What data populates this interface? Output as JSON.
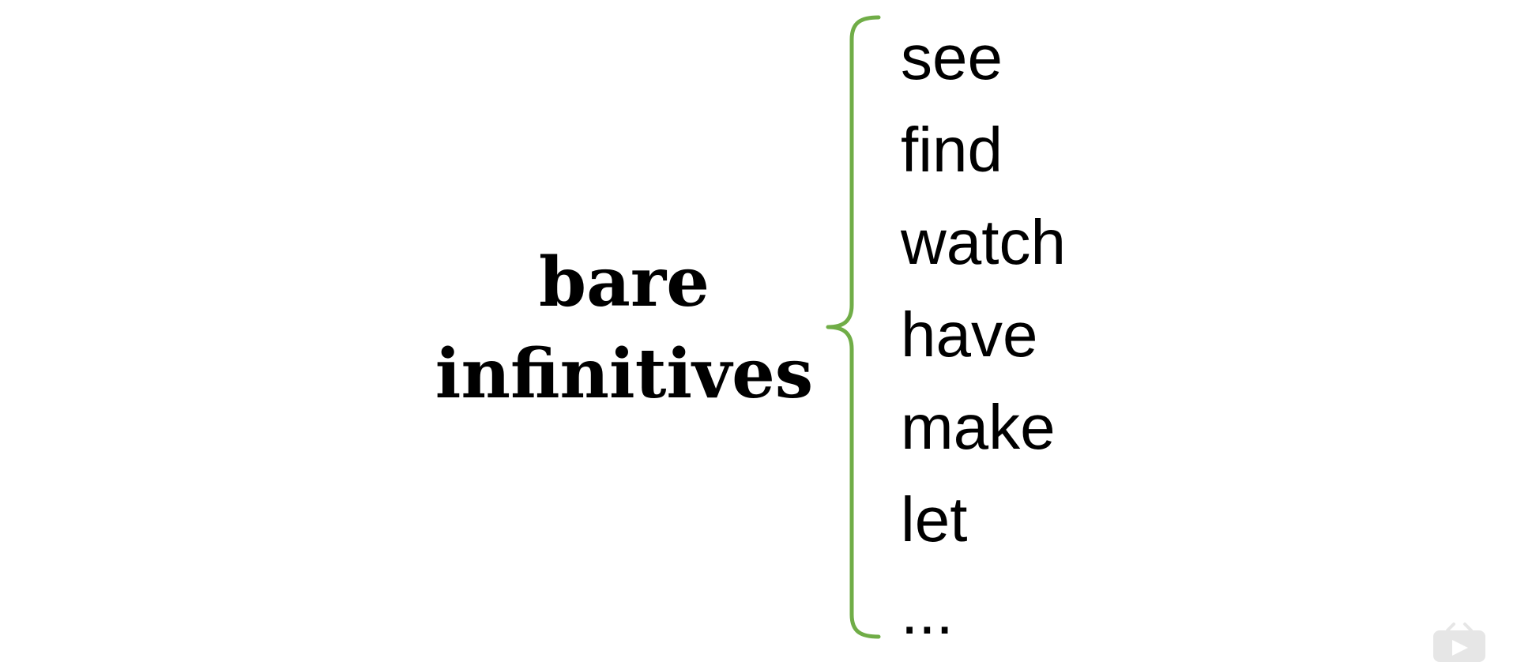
{
  "term": {
    "line1": "bare",
    "line2": "infinitives"
  },
  "words": [
    "see",
    "find",
    "watch",
    "have",
    "make",
    "let",
    "..."
  ],
  "colors": {
    "brace": "#70ad47",
    "text": "#000000",
    "icon": "#e6e6e6"
  },
  "icons": {
    "corner": "play-icon"
  }
}
